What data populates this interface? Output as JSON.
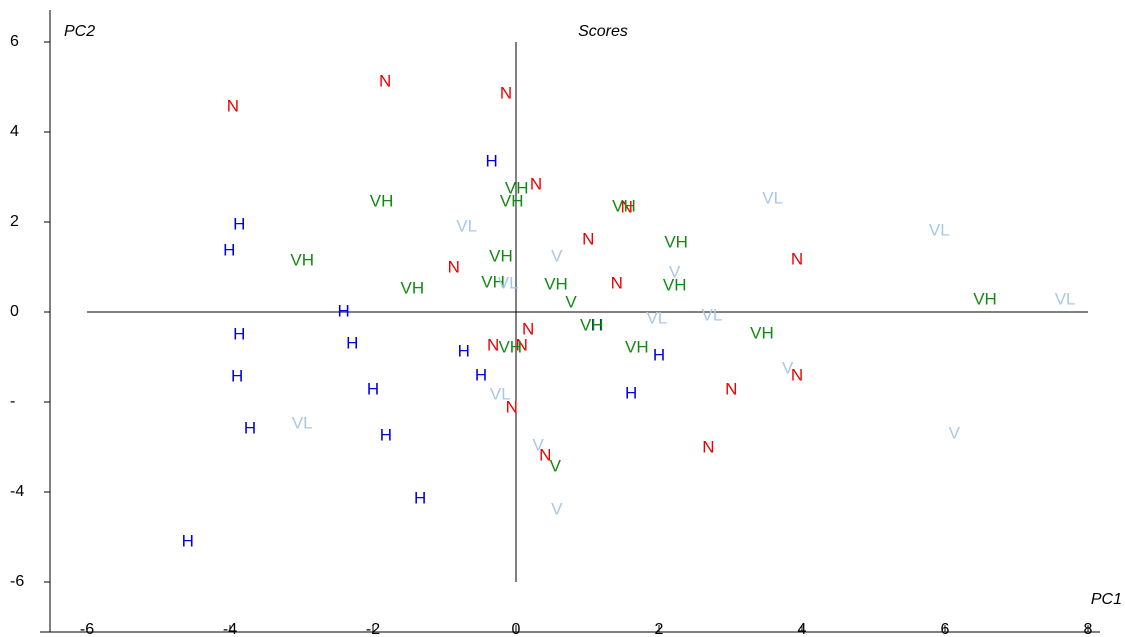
{
  "chart_data": {
    "type": "scatter",
    "title": "Scores",
    "x_label": "PC1",
    "y_label": "PC2",
    "xlim": [
      -6,
      8
    ],
    "ylim": [
      -6,
      6
    ],
    "xticks": [
      -6,
      -4,
      -2,
      0,
      2,
      4,
      6,
      8
    ],
    "yticks": [
      6,
      4,
      2,
      0,
      {
        "value": -2,
        "label": "-"
      },
      -4,
      -6
    ],
    "series": [
      {
        "name": "N",
        "color": "#ee0000",
        "x": [
          -3.96,
          -1.83,
          -0.14,
          0.28,
          1.55,
          1.01,
          -0.87,
          1.41,
          3.93,
          0.17,
          -0.32,
          0.08,
          -0.06,
          0.41,
          3.01,
          3.93,
          2.69
        ],
        "values": [
          4.56,
          5.11,
          4.84,
          2.82,
          2.31,
          1.6,
          0.98,
          0.62,
          1.16,
          -0.4,
          -0.76,
          -0.76,
          -2.13,
          -3.2,
          -1.73,
          -1.42,
          -3.02
        ]
      },
      {
        "name": "H",
        "color": "#0000dd",
        "x": [
          -0.34,
          -3.87,
          -4.01,
          -2.41,
          -3.87,
          -2.29,
          -0.73,
          1.13,
          2.0,
          -3.9,
          -2.0,
          -0.49,
          1.61,
          -3.72,
          -1.82,
          -1.34,
          -4.59
        ],
        "values": [
          3.33,
          1.93,
          1.36,
          0,
          -0.51,
          -0.71,
          -0.89,
          -0.31,
          -0.98,
          -1.44,
          -1.73,
          -1.42,
          -1.82,
          -2.6,
          -2.76,
          -4.16,
          -5.11
        ]
      },
      {
        "name": "VH",
        "color": "#128a12",
        "x": [
          -1.88,
          -0.06,
          0.01,
          1.51,
          2.24,
          -2.99,
          -0.21,
          -0.32,
          -1.45,
          0.56,
          2.22,
          1.06,
          1.69,
          -0.08,
          3.44,
          6.56
        ],
        "values": [
          2.44,
          2.44,
          2.73,
          2.33,
          1.53,
          1.13,
          1.22,
          0.64,
          0.51,
          0.6,
          0.58,
          -0.31,
          -0.8,
          -0.8,
          -0.49,
          0.27
        ]
      },
      {
        "name": "V",
        "color": "#128a12",
        "x": [
          0.77,
          0.55
        ],
        "values": [
          0.2,
          -3.44
        ]
      },
      {
        "name": "VL",
        "color": "#a8c8e8",
        "x": [
          3.59,
          5.92,
          -0.69,
          -0.11,
          7.68,
          1.97,
          2.74,
          -0.22,
          -2.99
        ],
        "values": [
          2.51,
          1.8,
          1.89,
          0.62,
          0.27,
          -0.16,
          -0.09,
          -1.84,
          -2.49
        ]
      },
      {
        "name": "V",
        "color": "#a8c8e8",
        "x": [
          0.57,
          2.22,
          3.8,
          6.13,
          0.31,
          0.57
        ],
        "values": [
          1.22,
          0.87,
          -1.27,
          -2.71,
          -2.98,
          -4.4
        ]
      }
    ]
  }
}
